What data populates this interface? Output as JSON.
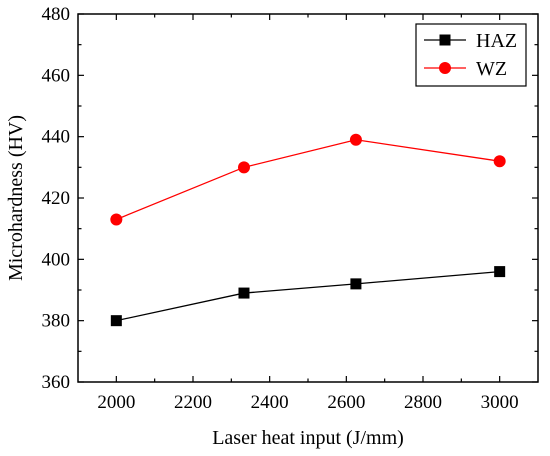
{
  "chart_data": {
    "type": "line",
    "title": "",
    "xlabel": "Laser heat input (J/mm)",
    "ylabel": "Microhardness (HV)",
    "xlim": [
      1900,
      3100
    ],
    "ylim": [
      360,
      480
    ],
    "xticks": [
      2000,
      2200,
      2400,
      2600,
      2800,
      3000
    ],
    "yticks": [
      360,
      380,
      400,
      420,
      440,
      460,
      480
    ],
    "grid": false,
    "legend_position": "top-right",
    "series": [
      {
        "name": "HAZ",
        "color": "#000000",
        "marker": "square",
        "x": [
          2000,
          2333,
          2625,
          3000
        ],
        "y": [
          380,
          389,
          392,
          396
        ]
      },
      {
        "name": "WZ",
        "color": "#ff0000",
        "marker": "circle",
        "x": [
          2000,
          2333,
          2625,
          3000
        ],
        "y": [
          413,
          430,
          439,
          432
        ]
      }
    ]
  }
}
